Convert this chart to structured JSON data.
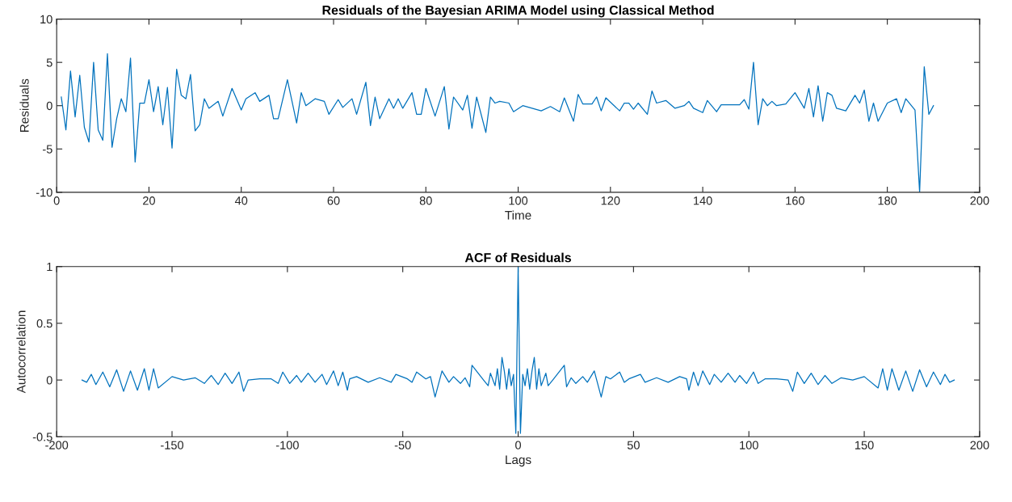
{
  "chart_data": [
    {
      "type": "line",
      "title": "Residuals of the Bayesian ARIMA Model using Classical Method",
      "xlabel": "Time",
      "ylabel": "Residuals",
      "xlim": [
        0,
        200
      ],
      "ylim": [
        -10,
        10
      ],
      "xticks": [
        0,
        20,
        40,
        60,
        80,
        100,
        120,
        140,
        160,
        180,
        200
      ],
      "yticks": [
        -10,
        -5,
        0,
        5,
        10
      ],
      "series": [
        {
          "color": "#0072bd",
          "x": [
            1,
            2,
            3,
            4,
            5,
            6,
            7,
            8,
            9,
            10,
            11,
            12,
            13,
            14,
            15,
            16,
            17,
            18,
            19,
            20,
            21,
            22,
            23,
            24,
            25,
            26,
            27,
            28,
            29,
            30,
            31,
            32,
            33,
            35,
            36,
            38,
            40,
            41,
            43,
            44,
            46,
            47,
            48,
            50,
            52,
            53,
            54,
            56,
            58,
            59,
            61,
            62,
            64,
            65,
            67,
            68,
            69,
            70,
            72,
            73,
            74,
            75,
            77,
            78,
            79,
            80,
            82,
            84,
            85,
            86,
            88,
            89,
            90,
            91,
            93,
            94,
            95,
            96,
            98,
            99,
            101,
            103,
            105,
            107,
            109,
            110,
            112,
            113,
            114,
            116,
            117,
            118,
            119,
            122,
            123,
            124,
            125,
            126,
            128,
            129,
            130,
            132,
            134,
            136,
            137,
            138,
            140,
            141,
            143,
            144,
            148,
            149,
            150,
            151,
            152,
            153,
            154,
            155,
            156,
            158,
            160,
            162,
            163,
            164,
            165,
            166,
            167,
            168,
            169,
            171,
            173,
            174,
            175,
            176,
            177,
            178,
            180,
            182,
            183,
            184,
            186,
            187,
            188,
            189,
            190
          ],
          "values": [
            1.0,
            -2.8,
            4.0,
            -1.3,
            3.5,
            -2.5,
            -4.2,
            5.0,
            -2.8,
            -4.0,
            6.0,
            -4.8,
            -1.5,
            0.8,
            -0.7,
            5.5,
            -6.5,
            0.3,
            0.3,
            3.0,
            -0.7,
            2.2,
            -2.2,
            2.1,
            -4.9,
            4.2,
            1.2,
            0.8,
            3.6,
            -2.9,
            -2.2,
            0.8,
            -0.3,
            0.5,
            -1.2,
            2.0,
            -0.5,
            0.8,
            1.5,
            0.5,
            1.2,
            -1.5,
            -1.5,
            3.0,
            -2.0,
            1.5,
            0.0,
            0.8,
            0.5,
            -1.0,
            0.7,
            -0.2,
            0.8,
            -1.0,
            2.7,
            -2.3,
            1.0,
            -1.5,
            0.8,
            -0.3,
            0.8,
            -0.3,
            1.5,
            -1.0,
            -1.0,
            2.0,
            -1.2,
            2.2,
            -2.7,
            1.0,
            -0.5,
            1.2,
            -2.6,
            1.0,
            -3.1,
            1.0,
            0.3,
            0.5,
            0.3,
            -0.7,
            0.0,
            -0.3,
            -0.6,
            -0.1,
            -0.7,
            0.9,
            -1.8,
            1.3,
            0.2,
            0.2,
            1.0,
            -0.6,
            0.9,
            -0.6,
            0.3,
            0.3,
            -0.4,
            0.3,
            -1.0,
            1.7,
            0.3,
            0.6,
            -0.3,
            0.0,
            0.5,
            -0.3,
            -0.8,
            0.6,
            -0.7,
            0.1,
            0.1,
            0.7,
            -0.4,
            5.0,
            -2.2,
            0.8,
            0.0,
            0.5,
            0.0,
            0.2,
            1.5,
            -0.3,
            2.0,
            -1.3,
            2.3,
            -1.8,
            1.5,
            1.2,
            -0.3,
            -0.6,
            1.2,
            0.3,
            1.8,
            -1.8,
            0.3,
            -1.8,
            0.3,
            0.8,
            -0.8,
            0.8,
            -0.5,
            -10.0,
            4.5,
            -1.0,
            0.0
          ]
        }
      ]
    },
    {
      "type": "line",
      "title": "ACF of Residuals",
      "xlabel": "Lags",
      "ylabel": "Autocorrelation",
      "xlim": [
        -200,
        200
      ],
      "ylim": [
        -0.5,
        1
      ],
      "xticks": [
        -200,
        -150,
        -100,
        -50,
        0,
        50,
        100,
        150,
        200
      ],
      "yticks": [
        -0.5,
        0,
        0.5,
        1
      ],
      "series": [
        {
          "color": "#0072bd",
          "x": [
            -189,
            -187,
            -185,
            -183,
            -180,
            -177,
            -174,
            -171,
            -168,
            -165,
            -162,
            -160,
            -158,
            -156,
            -150,
            -145,
            -140,
            -136,
            -133,
            -130,
            -127,
            -124,
            -121,
            -119,
            -117,
            -112,
            -107,
            -104,
            -102,
            -99,
            -96,
            -94,
            -91,
            -88,
            -85,
            -83,
            -80,
            -78,
            -76,
            -74,
            -73,
            -70,
            -65,
            -60,
            -55,
            -53,
            -48,
            -46,
            -44,
            -40,
            -38,
            -36,
            -33,
            -30,
            -28,
            -25,
            -23,
            -21,
            -20,
            -15,
            -13,
            -12,
            -10,
            -9,
            -8,
            -7,
            -6,
            -5,
            -4,
            -3,
            -2,
            -1,
            0,
            1,
            2,
            3,
            4,
            5,
            6,
            7,
            8,
            9,
            10,
            12,
            13,
            15,
            20,
            21,
            23,
            25,
            28,
            30,
            33,
            36,
            38,
            40,
            44,
            46,
            48,
            53,
            55,
            60,
            65,
            70,
            73,
            74,
            76,
            78,
            80,
            83,
            85,
            88,
            91,
            94,
            96,
            99,
            102,
            104,
            107,
            112,
            117,
            119,
            121,
            124,
            127,
            130,
            133,
            136,
            140,
            145,
            150,
            156,
            158,
            160,
            162,
            165,
            168,
            171,
            174,
            177,
            180,
            183,
            185,
            187,
            189
          ],
          "values": [
            0.0,
            -0.02,
            0.05,
            -0.04,
            0.07,
            -0.06,
            0.09,
            -0.1,
            0.08,
            -0.09,
            0.1,
            -0.09,
            0.1,
            -0.07,
            0.03,
            0.0,
            0.02,
            -0.03,
            0.04,
            -0.04,
            0.06,
            -0.03,
            0.07,
            -0.1,
            0.0,
            0.01,
            0.01,
            -0.03,
            0.07,
            -0.03,
            0.04,
            -0.02,
            0.06,
            -0.02,
            0.05,
            -0.04,
            0.08,
            -0.05,
            0.07,
            -0.09,
            0.01,
            0.03,
            -0.02,
            0.02,
            -0.02,
            0.05,
            0.01,
            -0.02,
            0.07,
            0.01,
            0.03,
            -0.15,
            0.08,
            -0.02,
            0.03,
            -0.03,
            0.02,
            -0.06,
            0.13,
            0.0,
            -0.05,
            0.06,
            -0.05,
            0.1,
            -0.08,
            0.2,
            0.08,
            -0.08,
            0.1,
            -0.05,
            0.05,
            -0.47,
            1.0,
            -0.47,
            0.05,
            -0.05,
            0.1,
            -0.08,
            0.08,
            0.2,
            -0.08,
            0.1,
            -0.05,
            0.06,
            -0.05,
            0.0,
            0.13,
            -0.06,
            0.02,
            -0.03,
            0.03,
            -0.02,
            0.08,
            -0.15,
            0.03,
            0.01,
            0.07,
            -0.02,
            0.01,
            0.05,
            -0.02,
            0.02,
            -0.02,
            0.03,
            0.01,
            -0.09,
            0.07,
            -0.05,
            0.08,
            -0.04,
            0.05,
            -0.02,
            0.06,
            -0.02,
            0.04,
            -0.03,
            0.07,
            -0.03,
            0.01,
            0.01,
            0.0,
            -0.1,
            0.07,
            -0.03,
            0.06,
            -0.04,
            0.04,
            -0.03,
            0.02,
            0.0,
            0.03,
            -0.07,
            0.1,
            -0.09,
            0.1,
            -0.09,
            0.08,
            -0.1,
            0.09,
            -0.06,
            0.07,
            -0.04,
            0.05,
            -0.02,
            0.0
          ]
        }
      ]
    }
  ]
}
